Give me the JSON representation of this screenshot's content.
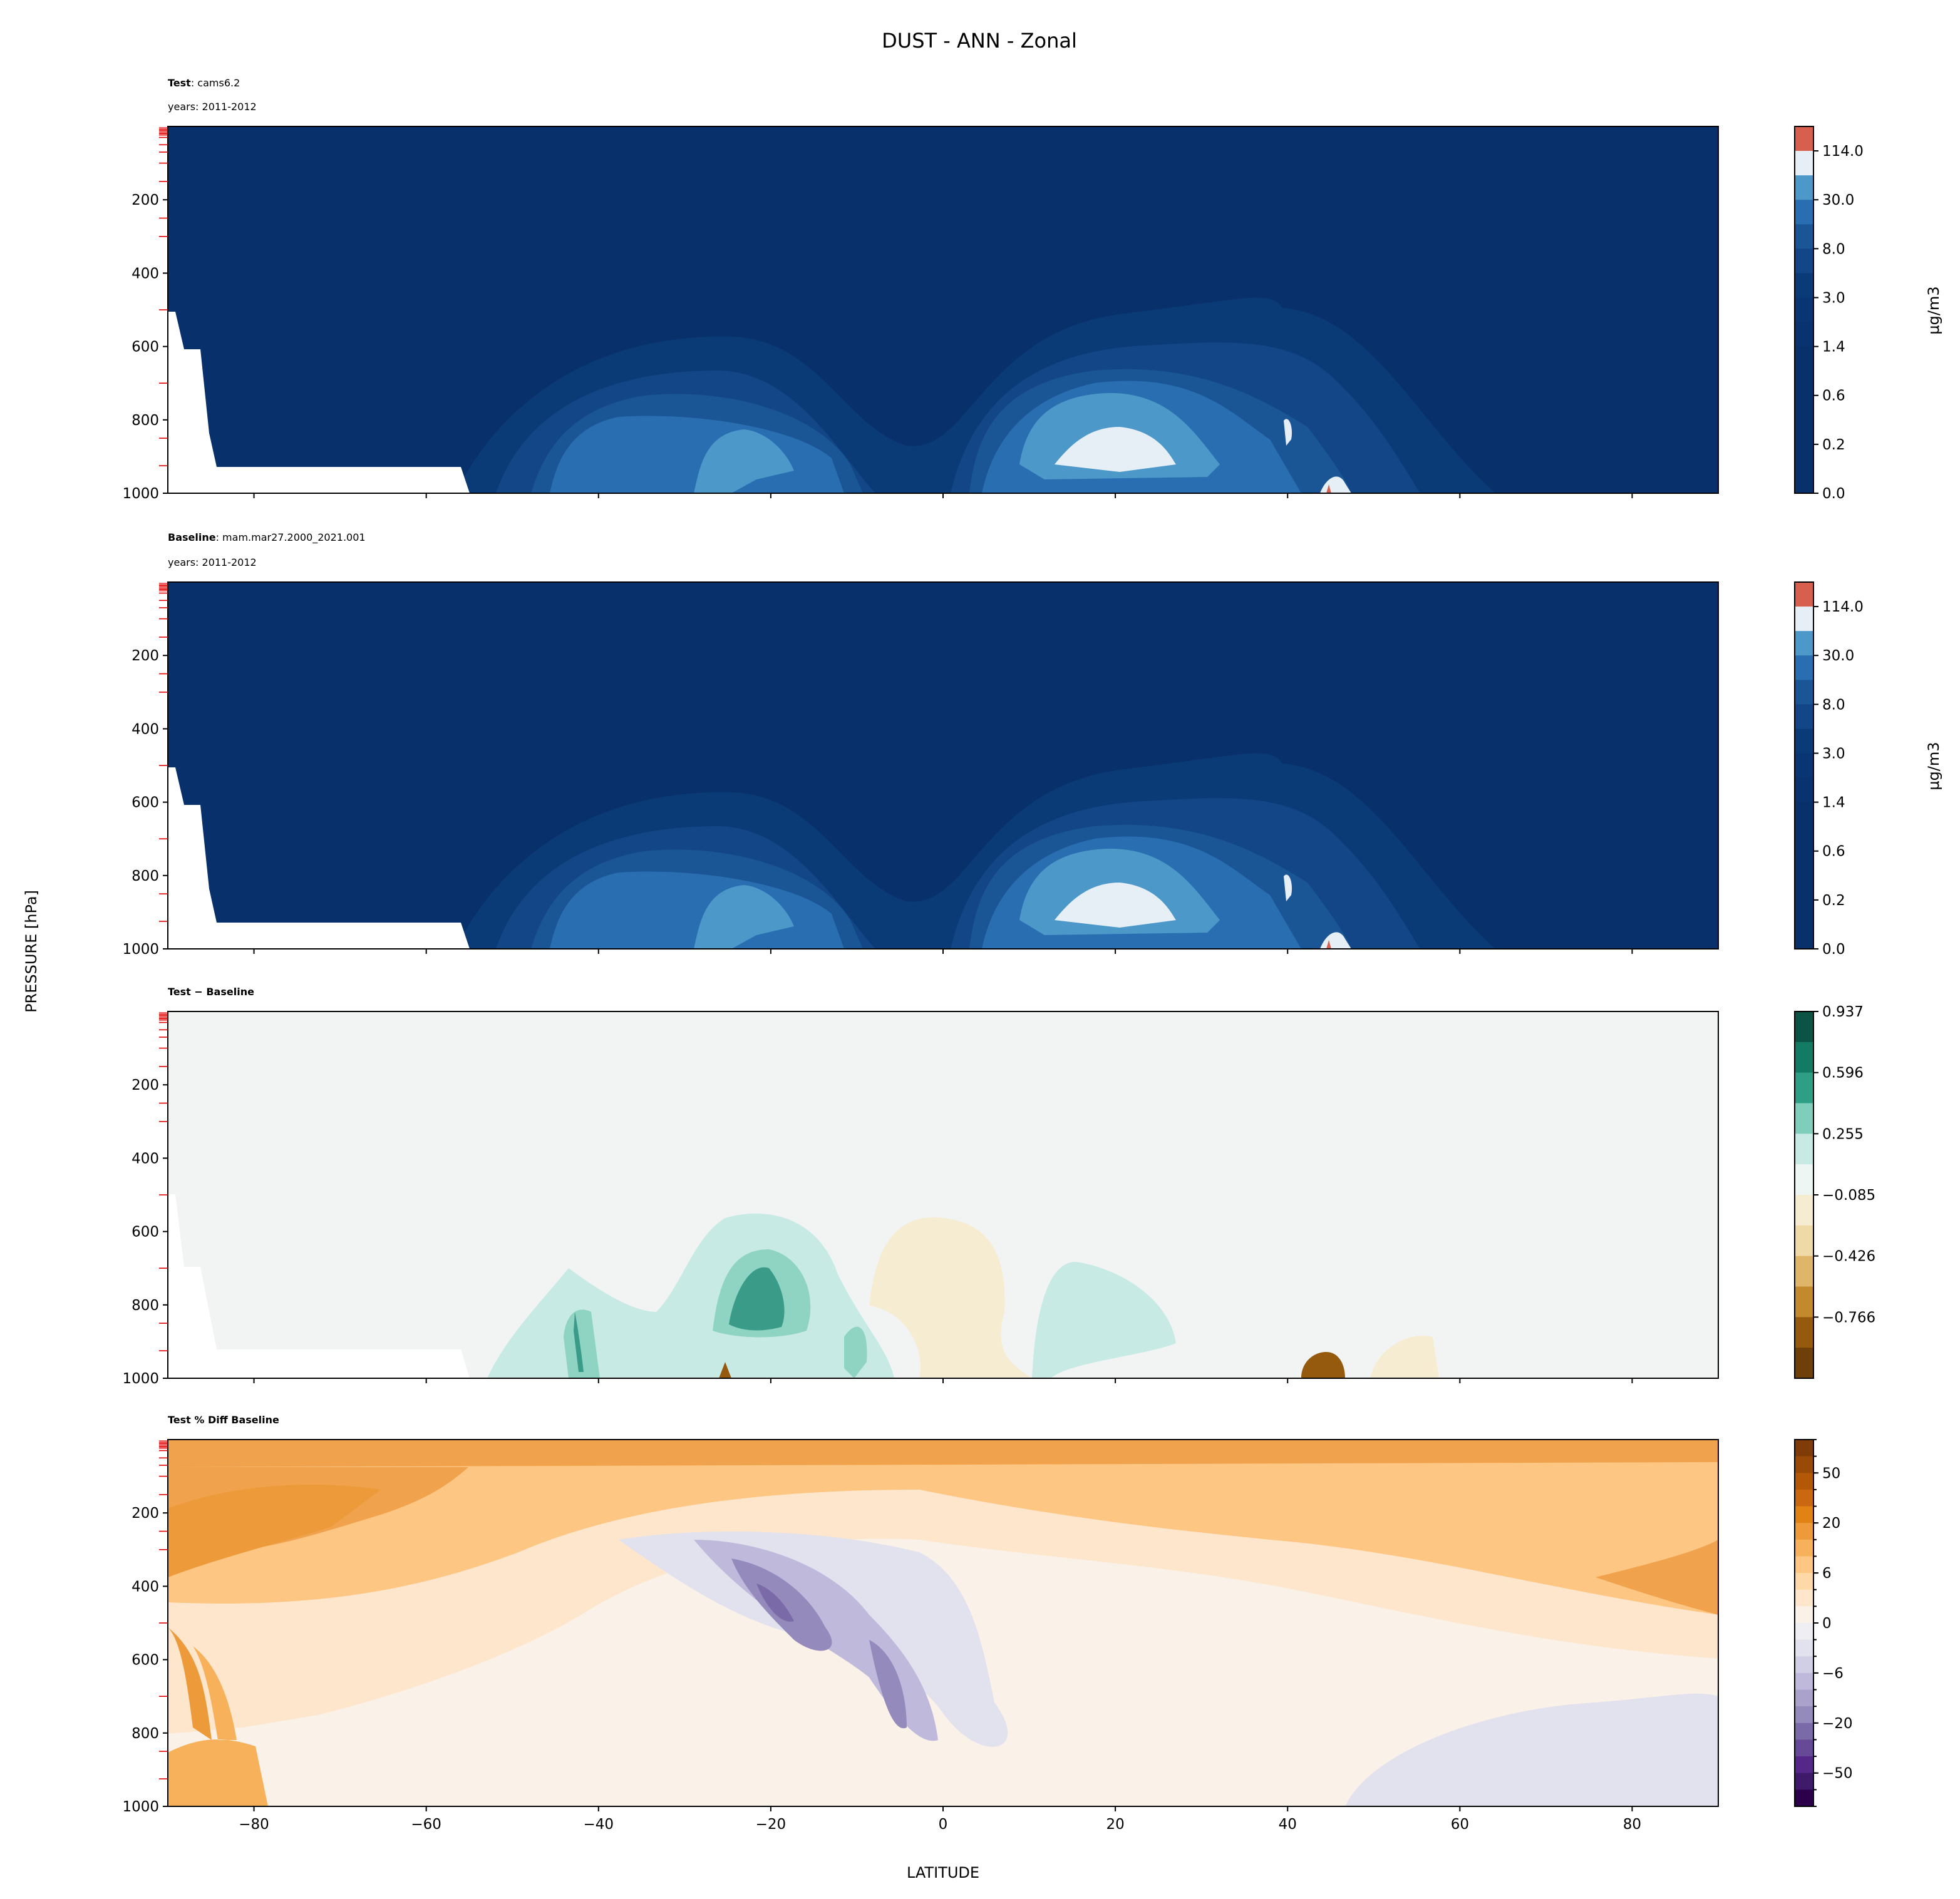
{
  "figure_title": "DUST - ANN - Zonal",
  "xlabel": "LATITUDE",
  "ylabel": "PRESSURE [hPa]",
  "xticks": [
    "−80",
    "−60",
    "−40",
    "−20",
    "0",
    "20",
    "40",
    "60",
    "80"
  ],
  "xtick_values": [
    -80,
    -60,
    -40,
    -20,
    0,
    20,
    40,
    60,
    80
  ],
  "yticks": [
    "200",
    "400",
    "600",
    "800",
    "1000"
  ],
  "ytick_values": [
    200,
    400,
    600,
    800,
    1000
  ],
  "xlim": [
    -90,
    90
  ],
  "ylim": [
    1000,
    0
  ],
  "chart_data": [
    {
      "type": "heatmap",
      "title_bold": "Test",
      "title_rest": ": cams6.2",
      "subtitle": "years: 2011-2012",
      "field": "DUST zonal mean",
      "colorbar": {
        "label": "μg/m3",
        "ticks": [
          "114.0",
          "30.0",
          "8.0",
          "3.0",
          "1.4",
          "0.6",
          "0.2",
          "0.0"
        ],
        "tick_boundaries": [
          1,
          3,
          5,
          7,
          9,
          11,
          13,
          15
        ],
        "colors": [
          "#d6604d",
          "#e6eef6",
          "#4b98c9",
          "#2a6eb2",
          "#1a5596",
          "#124686",
          "#0b3b77",
          "#093672",
          "#08336e",
          "#08316c",
          "#08306b",
          "#08306b",
          "#08306b",
          "#08306b",
          "#08306b"
        ]
      },
      "features": "max dust (>114) near 45N surface; 30-114 over 15-30N and 25S at 800-950 hPa"
    },
    {
      "type": "heatmap",
      "title_bold": "Baseline",
      "title_rest": ": mam.mar27.2000_2021.001",
      "subtitle": "years: 2011-2012",
      "colorbar": {
        "label": "μg/m3",
        "ticks": [
          "114.0",
          "30.0",
          "8.0",
          "3.0",
          "1.4",
          "0.6",
          "0.2",
          "0.0"
        ],
        "tick_boundaries": [
          1,
          3,
          5,
          7,
          9,
          11,
          13,
          15
        ],
        "colors": [
          "#d6604d",
          "#e6eef6",
          "#4b98c9",
          "#2a6eb2",
          "#1a5596",
          "#124686",
          "#0b3b77",
          "#093672",
          "#08336e",
          "#08316c",
          "#08306b",
          "#08306b",
          "#08306b",
          "#08306b",
          "#08306b"
        ]
      }
    },
    {
      "type": "heatmap",
      "title_bold": "Test − Baseline",
      "title_rest": "",
      "subtitle": "",
      "colorbar": {
        "label": "",
        "ticks": [
          "0.937",
          "0.596",
          "0.255",
          "−0.085",
          "−0.426",
          "−0.766"
        ],
        "tick_boundaries": [
          0,
          2,
          4,
          6,
          8,
          10
        ],
        "colors": [
          "#0b5345",
          "#137a63",
          "#2e9e85",
          "#7fcdbb",
          "#c7eae5",
          "#eef6f3",
          "#f6ecd2",
          "#efd9a6",
          "#dfb56a",
          "#c28a2c",
          "#955a0d",
          "#6e3f08"
        ]
      }
    },
    {
      "type": "heatmap",
      "title_bold": "Test % Diff Baseline",
      "title_rest": "",
      "subtitle": "",
      "colorbar": {
        "label": "",
        "ticks": [
          "50",
          "20",
          "6",
          "0",
          "−6",
          "−20",
          "−50"
        ],
        "tick_boundaries": [
          2,
          5,
          8,
          11,
          14,
          17,
          20
        ],
        "colors": [
          "#7f3b08",
          "#9a4a07",
          "#b35806",
          "#c96810",
          "#e08214",
          "#ec9a3a",
          "#f6b15a",
          "#fdc682",
          "#fed8a6",
          "#fee6cc",
          "#faf1e8",
          "#efeff3",
          "#e2e1ee",
          "#d0cfe5",
          "#bfbadb",
          "#aba2cc",
          "#948abb",
          "#7b6aa8",
          "#674a97",
          "#542788",
          "#3f1a6b",
          "#2d004b"
        ]
      }
    }
  ]
}
